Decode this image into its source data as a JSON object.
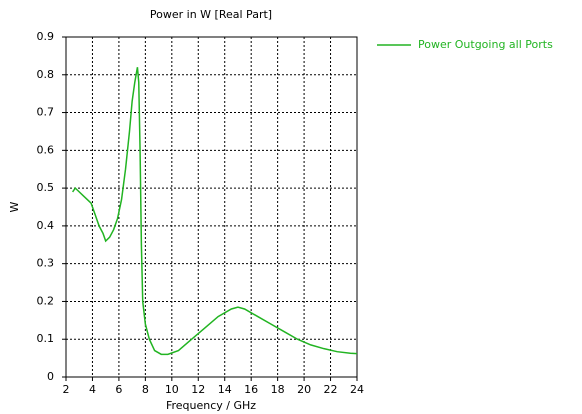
{
  "chart_data": {
    "type": "line",
    "title": "Power in W [Real Part]",
    "xlabel": "Frequency / GHz",
    "ylabel": "W",
    "x": [
      2.5,
      2.7,
      3.0,
      3.3,
      3.6,
      3.9,
      4.2,
      4.5,
      4.8,
      5.0,
      5.3,
      5.6,
      5.9,
      6.2,
      6.5,
      6.8,
      7.0,
      7.2,
      7.4,
      7.5,
      7.6,
      7.7,
      7.8,
      8.0,
      8.3,
      8.7,
      9.2,
      9.7,
      10.5,
      11.5,
      12.5,
      13.5,
      14.5,
      15.0,
      15.5,
      16.5,
      17.5,
      18.5,
      19.5,
      20.5,
      21.5,
      22.5,
      23.5,
      24
    ],
    "series": [
      {
        "name": "Power Outgoing all Ports",
        "color": "#22b422",
        "values": [
          0.49,
          0.5,
          0.49,
          0.48,
          0.47,
          0.46,
          0.43,
          0.4,
          0.38,
          0.36,
          0.37,
          0.39,
          0.42,
          0.47,
          0.55,
          0.65,
          0.73,
          0.78,
          0.82,
          0.78,
          0.6,
          0.35,
          0.2,
          0.14,
          0.1,
          0.07,
          0.06,
          0.06,
          0.07,
          0.1,
          0.13,
          0.16,
          0.18,
          0.185,
          0.18,
          0.16,
          0.14,
          0.12,
          0.1,
          0.085,
          0.075,
          0.067,
          0.063,
          0.062
        ]
      }
    ],
    "xlim": [
      2,
      24
    ],
    "xticks": [
      2,
      4,
      6,
      8,
      10,
      12,
      14,
      16,
      18,
      20,
      22,
      24
    ],
    "ylim": [
      0,
      0.9
    ],
    "yticks": [
      0,
      0.1,
      0.2,
      0.3,
      0.4,
      0.5,
      0.6,
      0.7,
      0.8,
      0.9
    ],
    "grid": true,
    "legend": "right"
  }
}
